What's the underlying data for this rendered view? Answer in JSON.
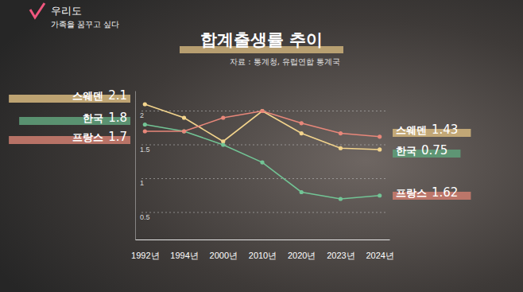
{
  "chart_data": {
    "type": "line",
    "title": "합계출생률 추이",
    "subtitle": "자료 : 통계청, 유럽연합 통계국",
    "annotations": [
      "우리도",
      "가족을 꿈꾸고 싶다"
    ],
    "categories": [
      "1992년",
      "1994년",
      "2000년",
      "2010년",
      "2020년",
      "2023년",
      "2024년"
    ],
    "series": [
      {
        "name": "스웨덴",
        "color": "#f3d48c",
        "values": [
          2.1,
          1.9,
          1.55,
          2.0,
          1.67,
          1.45,
          1.43
        ]
      },
      {
        "name": "한국",
        "color": "#72c495",
        "values": [
          1.8,
          1.7,
          1.5,
          1.24,
          0.8,
          0.7,
          0.75
        ]
      },
      {
        "name": "프랑스",
        "color": "#e8877a",
        "values": [
          1.7,
          1.7,
          1.9,
          2.0,
          1.82,
          1.67,
          1.62
        ]
      }
    ],
    "ylim": [
      0.1,
      2.3
    ],
    "yticks": [
      0.5,
      1,
      1.5,
      2
    ],
    "grid": true
  }
}
